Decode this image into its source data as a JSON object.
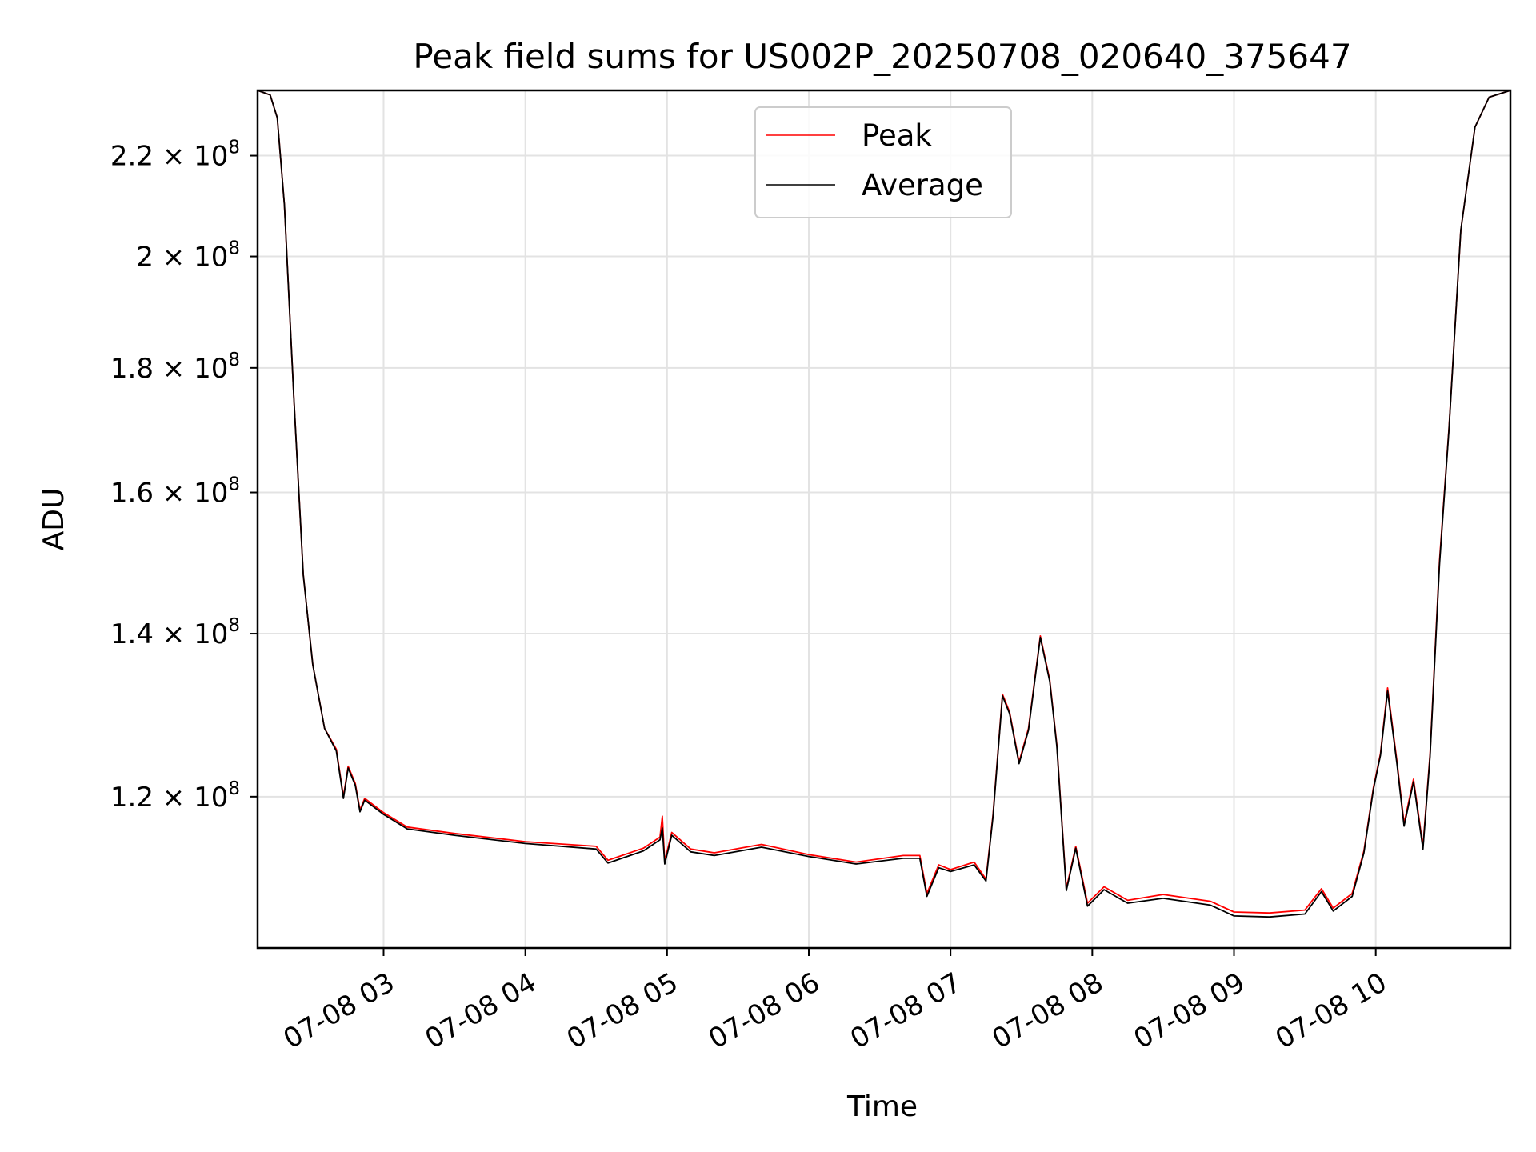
{
  "chart_data": {
    "type": "line",
    "title": "Peak field sums for US002P_20250708_020640_375647",
    "xlabel": "Time",
    "ylabel": "ADU",
    "y_scale": "log",
    "ylim": [
      104000000,
      234000000
    ],
    "xlim": [
      "2025-07-08T02:06:40",
      "2025-07-08T10:57:00"
    ],
    "grid": true,
    "legend_position": "top-center",
    "x_ticks": [
      {
        "t": "2025-07-08T03:00",
        "label": "07-08 03"
      },
      {
        "t": "2025-07-08T04:00",
        "label": "07-08 04"
      },
      {
        "t": "2025-07-08T05:00",
        "label": "07-08 05"
      },
      {
        "t": "2025-07-08T06:00",
        "label": "07-08 06"
      },
      {
        "t": "2025-07-08T07:00",
        "label": "07-08 07"
      },
      {
        "t": "2025-07-08T08:00",
        "label": "07-08 08"
      },
      {
        "t": "2025-07-08T09:00",
        "label": "07-08 09"
      },
      {
        "t": "2025-07-08T10:00",
        "label": "07-08 10"
      }
    ],
    "y_ticks": [
      {
        "value": 120000000,
        "mantissa": "1.2",
        "exponent": "8"
      },
      {
        "value": 140000000,
        "mantissa": "1.4",
        "exponent": "8"
      },
      {
        "value": 160000000,
        "mantissa": "1.6",
        "exponent": "8"
      },
      {
        "value": 180000000,
        "mantissa": "1.8",
        "exponent": "8"
      },
      {
        "value": 200000000,
        "mantissa": "2",
        "exponent": "8"
      },
      {
        "value": 220000000,
        "mantissa": "2.2",
        "exponent": "8"
      }
    ],
    "series": [
      {
        "name": "Peak",
        "color": "#ff0000",
        "points": [
          [
            "2025-07-08T02:06:40",
            234000000
          ],
          [
            "2025-07-08T02:12:00",
            233000000
          ],
          [
            "2025-07-08T02:15:00",
            228000000
          ],
          [
            "2025-07-08T02:18:00",
            210000000
          ],
          [
            "2025-07-08T02:22:00",
            175000000
          ],
          [
            "2025-07-08T02:26:00",
            148000000
          ],
          [
            "2025-07-08T02:30:00",
            136000000
          ],
          [
            "2025-07-08T02:35:00",
            128000000
          ],
          [
            "2025-07-08T02:40:00",
            125500000
          ],
          [
            "2025-07-08T02:43:00",
            120000000
          ],
          [
            "2025-07-08T02:45:00",
            123500000
          ],
          [
            "2025-07-08T02:48:00",
            121500000
          ],
          [
            "2025-07-08T02:50:00",
            118500000
          ],
          [
            "2025-07-08T02:52:00",
            119800000
          ],
          [
            "2025-07-08T03:00:00",
            118200000
          ],
          [
            "2025-07-08T03:10:00",
            116600000
          ],
          [
            "2025-07-08T03:30:00",
            115900000
          ],
          [
            "2025-07-08T04:00:00",
            115000000
          ],
          [
            "2025-07-08T04:30:00",
            114500000
          ],
          [
            "2025-07-08T04:35:00",
            113000000
          ],
          [
            "2025-07-08T04:50:00",
            114300000
          ],
          [
            "2025-07-08T04:57:00",
            115500000
          ],
          [
            "2025-07-08T04:58:00",
            117800000
          ],
          [
            "2025-07-08T04:59:00",
            112900000
          ],
          [
            "2025-07-08T05:02:00",
            116000000
          ],
          [
            "2025-07-08T05:10:00",
            114200000
          ],
          [
            "2025-07-08T05:20:00",
            113800000
          ],
          [
            "2025-07-08T05:40:00",
            114700000
          ],
          [
            "2025-07-08T06:00:00",
            113600000
          ],
          [
            "2025-07-08T06:20:00",
            112800000
          ],
          [
            "2025-07-08T06:40:00",
            113500000
          ],
          [
            "2025-07-08T06:47:00",
            113500000
          ],
          [
            "2025-07-08T06:50:00",
            109500000
          ],
          [
            "2025-07-08T06:55:00",
            112500000
          ],
          [
            "2025-07-08T07:00:00",
            112000000
          ],
          [
            "2025-07-08T07:10:00",
            112800000
          ],
          [
            "2025-07-08T07:15:00",
            111000000
          ],
          [
            "2025-07-08T07:18:00",
            118000000
          ],
          [
            "2025-07-08T07:22:00",
            132200000
          ],
          [
            "2025-07-08T07:25:00",
            130000000
          ],
          [
            "2025-07-08T07:29:00",
            124000000
          ],
          [
            "2025-07-08T07:33:00",
            128000000
          ],
          [
            "2025-07-08T07:38:00",
            139700000
          ],
          [
            "2025-07-08T07:42:00",
            134000000
          ],
          [
            "2025-07-08T07:45:00",
            126000000
          ],
          [
            "2025-07-08T07:49:00",
            110000000
          ],
          [
            "2025-07-08T07:53:00",
            114500000
          ],
          [
            "2025-07-08T07:58:00",
            108500000
          ],
          [
            "2025-07-08T08:05:00",
            110200000
          ],
          [
            "2025-07-08T08:15:00",
            108800000
          ],
          [
            "2025-07-08T08:30:00",
            109400000
          ],
          [
            "2025-07-08T08:50:00",
            108700000
          ],
          [
            "2025-07-08T09:00:00",
            107600000
          ],
          [
            "2025-07-08T09:15:00",
            107500000
          ],
          [
            "2025-07-08T09:30:00",
            107800000
          ],
          [
            "2025-07-08T09:37:00",
            110000000
          ],
          [
            "2025-07-08T09:42:00",
            108000000
          ],
          [
            "2025-07-08T09:50:00",
            109500000
          ],
          [
            "2025-07-08T09:55:00",
            114000000
          ],
          [
            "2025-07-08T09:59:00",
            121000000
          ],
          [
            "2025-07-08T10:02:00",
            125000000
          ],
          [
            "2025-07-08T10:05:00",
            133000000
          ],
          [
            "2025-07-08T10:09:00",
            124000000
          ],
          [
            "2025-07-08T10:12:00",
            117000000
          ],
          [
            "2025-07-08T10:16:00",
            122000000
          ],
          [
            "2025-07-08T10:20:00",
            114500000
          ],
          [
            "2025-07-08T10:23:00",
            125000000
          ],
          [
            "2025-07-08T10:27:00",
            150000000
          ],
          [
            "2025-07-08T10:31:00",
            170000000
          ],
          [
            "2025-07-08T10:36:00",
            205000000
          ],
          [
            "2025-07-08T10:42:00",
            226000000
          ],
          [
            "2025-07-08T10:48:00",
            232500000
          ],
          [
            "2025-07-08T10:57:00",
            234000000
          ]
        ]
      },
      {
        "name": "Average",
        "color": "#000000",
        "points": [
          [
            "2025-07-08T02:06:40",
            234000000
          ],
          [
            "2025-07-08T02:12:00",
            233000000
          ],
          [
            "2025-07-08T02:15:00",
            228000000
          ],
          [
            "2025-07-08T02:18:00",
            210000000
          ],
          [
            "2025-07-08T02:22:00",
            175000000
          ],
          [
            "2025-07-08T02:26:00",
            148000000
          ],
          [
            "2025-07-08T02:30:00",
            136000000
          ],
          [
            "2025-07-08T02:35:00",
            128000000
          ],
          [
            "2025-07-08T02:40:00",
            125300000
          ],
          [
            "2025-07-08T02:43:00",
            119800000
          ],
          [
            "2025-07-08T02:45:00",
            123300000
          ],
          [
            "2025-07-08T02:48:00",
            121300000
          ],
          [
            "2025-07-08T02:50:00",
            118300000
          ],
          [
            "2025-07-08T02:52:00",
            119600000
          ],
          [
            "2025-07-08T03:00:00",
            118000000
          ],
          [
            "2025-07-08T03:10:00",
            116400000
          ],
          [
            "2025-07-08T03:30:00",
            115700000
          ],
          [
            "2025-07-08T04:00:00",
            114800000
          ],
          [
            "2025-07-08T04:30:00",
            114200000
          ],
          [
            "2025-07-08T04:35:00",
            112700000
          ],
          [
            "2025-07-08T04:50:00",
            114000000
          ],
          [
            "2025-07-08T04:57:00",
            115200000
          ],
          [
            "2025-07-08T04:58:00",
            116500000
          ],
          [
            "2025-07-08T04:59:00",
            112600000
          ],
          [
            "2025-07-08T05:02:00",
            115700000
          ],
          [
            "2025-07-08T05:10:00",
            113900000
          ],
          [
            "2025-07-08T05:20:00",
            113500000
          ],
          [
            "2025-07-08T05:40:00",
            114400000
          ],
          [
            "2025-07-08T06:00:00",
            113400000
          ],
          [
            "2025-07-08T06:20:00",
            112600000
          ],
          [
            "2025-07-08T06:40:00",
            113200000
          ],
          [
            "2025-07-08T06:47:00",
            113200000
          ],
          [
            "2025-07-08T06:50:00",
            109200000
          ],
          [
            "2025-07-08T06:55:00",
            112200000
          ],
          [
            "2025-07-08T07:00:00",
            111800000
          ],
          [
            "2025-07-08T07:10:00",
            112500000
          ],
          [
            "2025-07-08T07:15:00",
            110800000
          ],
          [
            "2025-07-08T07:18:00",
            117800000
          ],
          [
            "2025-07-08T07:22:00",
            132000000
          ],
          [
            "2025-07-08T07:25:00",
            129800000
          ],
          [
            "2025-07-08T07:29:00",
            123800000
          ],
          [
            "2025-07-08T07:33:00",
            127800000
          ],
          [
            "2025-07-08T07:38:00",
            139500000
          ],
          [
            "2025-07-08T07:42:00",
            133800000
          ],
          [
            "2025-07-08T07:45:00",
            125800000
          ],
          [
            "2025-07-08T07:49:00",
            109800000
          ],
          [
            "2025-07-08T07:53:00",
            114300000
          ],
          [
            "2025-07-08T07:58:00",
            108200000
          ],
          [
            "2025-07-08T08:05:00",
            109900000
          ],
          [
            "2025-07-08T08:15:00",
            108500000
          ],
          [
            "2025-07-08T08:30:00",
            109000000
          ],
          [
            "2025-07-08T08:50:00",
            108300000
          ],
          [
            "2025-07-08T09:00:00",
            107200000
          ],
          [
            "2025-07-08T09:15:00",
            107100000
          ],
          [
            "2025-07-08T09:30:00",
            107400000
          ],
          [
            "2025-07-08T09:37:00",
            109700000
          ],
          [
            "2025-07-08T09:42:00",
            107700000
          ],
          [
            "2025-07-08T09:50:00",
            109200000
          ],
          [
            "2025-07-08T09:55:00",
            113800000
          ],
          [
            "2025-07-08T09:59:00",
            120800000
          ],
          [
            "2025-07-08T10:02:00",
            124800000
          ],
          [
            "2025-07-08T10:05:00",
            132600000
          ],
          [
            "2025-07-08T10:09:00",
            123700000
          ],
          [
            "2025-07-08T10:12:00",
            116700000
          ],
          [
            "2025-07-08T10:16:00",
            121700000
          ],
          [
            "2025-07-08T10:20:00",
            114200000
          ],
          [
            "2025-07-08T10:23:00",
            124700000
          ],
          [
            "2025-07-08T10:27:00",
            149500000
          ],
          [
            "2025-07-08T10:31:00",
            169800000
          ],
          [
            "2025-07-08T10:36:00",
            205000000
          ],
          [
            "2025-07-08T10:42:00",
            226000000
          ],
          [
            "2025-07-08T10:48:00",
            232500000
          ],
          [
            "2025-07-08T10:57:00",
            234000000
          ]
        ]
      }
    ]
  },
  "legend": {
    "items": [
      {
        "label": "Peak",
        "color": "#ff0000"
      },
      {
        "label": "Average",
        "color": "#000000"
      }
    ]
  }
}
